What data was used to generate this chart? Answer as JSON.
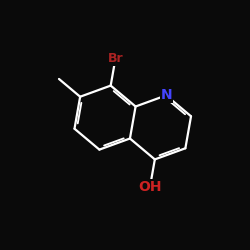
{
  "bg_color": "#0a0a0a",
  "bond_color": "#ffffff",
  "bond_width": 1.6,
  "font_size_N": 10,
  "font_size_Br": 9,
  "font_size_OH": 10,
  "Br_color": "#aa2222",
  "N_color": "#4444ff",
  "OH_color": "#cc2222",
  "xlim": [
    0,
    10
  ],
  "ylim": [
    0,
    10
  ]
}
